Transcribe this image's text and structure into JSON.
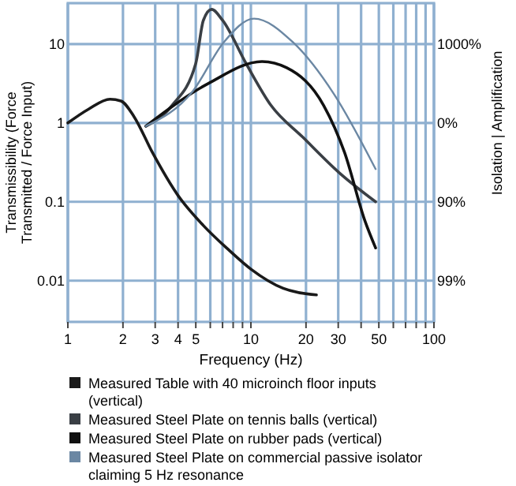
{
  "chart_data": {
    "type": "line",
    "xlabel": "Frequency (Hz)",
    "ylabel": "Transmissibility (Force Transmitted / Force Input)",
    "y2label": "Isolation | Amplification",
    "log": "xy",
    "grid": true,
    "legend": "bottom",
    "xlim": [
      1,
      100
    ],
    "ylim": [
      0.003,
      33
    ],
    "xticks": [
      1,
      2,
      3,
      4,
      5,
      {
        "value": 6,
        "label": null
      },
      {
        "value": 7,
        "label": null
      },
      {
        "value": 8,
        "label": null
      },
      {
        "value": 9,
        "label": null
      },
      10,
      20,
      30,
      {
        "value": 40,
        "label": null
      },
      50,
      {
        "value": 60,
        "label": null
      },
      {
        "value": 70,
        "label": null
      },
      {
        "value": 80,
        "label": null
      },
      {
        "value": 90,
        "label": null
      },
      100
    ],
    "yticks": [
      0.01,
      0.1,
      1,
      10
    ],
    "annotations": [
      "99%",
      "90%",
      "0%",
      "1000%"
    ],
    "series": [
      {
        "name": "Measured Table with 40 microinch floor inputs (vertical)",
        "color": "#1a1a1a",
        "x": [
          1,
          1.3,
          1.7,
          1.95,
          2.3,
          2.9,
          4,
          5.5,
          7.5,
          10,
          15,
          22.8
        ],
        "values": [
          1,
          1.5,
          2,
          1.9,
          1.2,
          0.42,
          0.12,
          0.05,
          0.025,
          0.014,
          0.008,
          0.0066
        ]
      },
      {
        "name": "Measured Steel Plate on tennis balls (vertical)",
        "color": "#3a3f45",
        "x": [
          2.67,
          3.7,
          5,
          5.5,
          6.1,
          7,
          9.4,
          12.9,
          19.2,
          30.6,
          48
        ],
        "values": [
          0.91,
          1.66,
          5.7,
          20,
          27.5,
          20,
          5.7,
          1.66,
          0.66,
          0.23,
          0.1
        ]
      },
      {
        "name": "Measured Steel Plate on rubber pads (vertical)",
        "color": "#111111",
        "x": [
          2.67,
          5.9,
          11.5,
          15.7,
          25,
          32.5,
          42,
          48
        ],
        "values": [
          0.91,
          3.2,
          6,
          5,
          1.66,
          0.42,
          0.057,
          0.026
        ]
      },
      {
        "name": "Measured Steel Plate on commercial passive isolator claiming 5 Hz resonance",
        "color": "#6b87a3",
        "x": [
          2.67,
          4.8,
          7.1,
          10.4,
          17,
          28.5,
          48
        ],
        "values": [
          0.91,
          2.5,
          10.5,
          21,
          10.5,
          2.3,
          0.26
        ]
      }
    ]
  }
}
